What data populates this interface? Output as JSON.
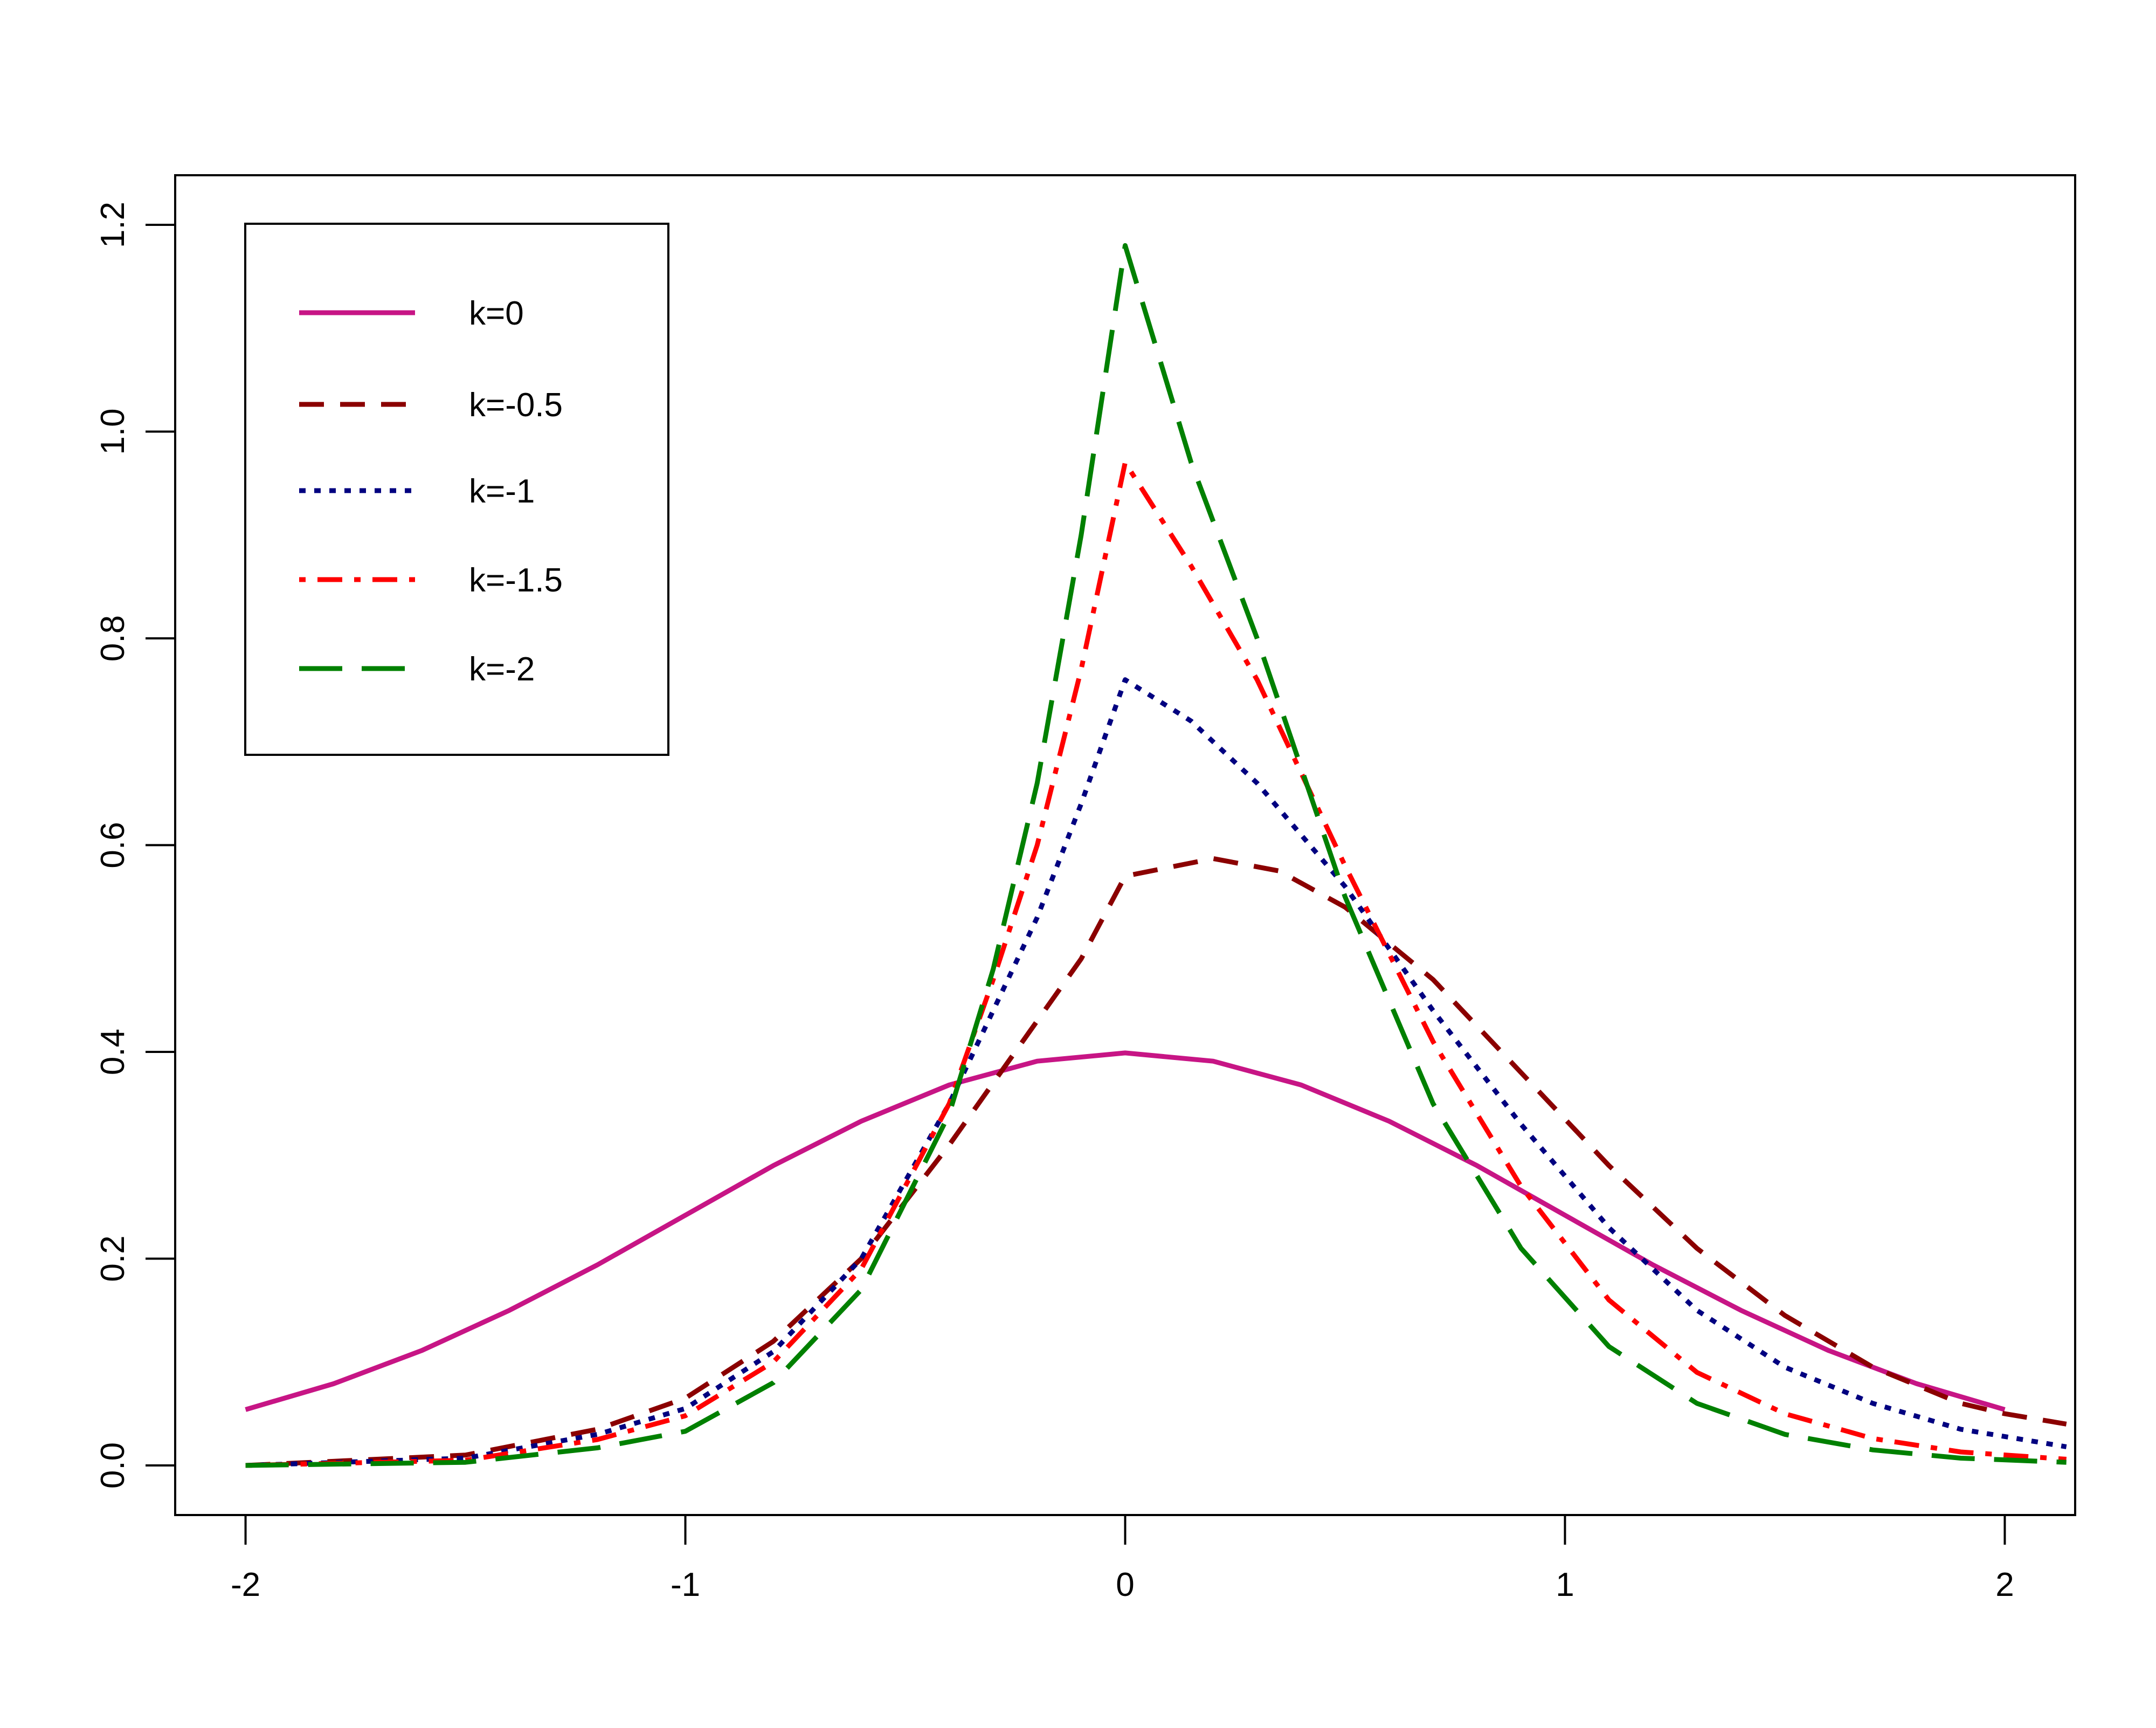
{
  "chart_data": {
    "type": "line",
    "title": "",
    "xlabel": "",
    "ylabel": "",
    "xlim": [
      -2.16,
      2.16
    ],
    "ylim": [
      -0.048,
      1.248
    ],
    "grid": false,
    "legend_position": "top-left",
    "x_ticks": [
      "-2",
      "-1",
      "0",
      "1",
      "2"
    ],
    "y_ticks": [
      "0.0",
      "0.2",
      "0.4",
      "0.6",
      "0.8",
      "1.0",
      "1.2"
    ],
    "series": [
      {
        "name": "k=0",
        "color": "#c71585",
        "style": "solid",
        "x": [
          -2.0,
          -1.8,
          -1.6,
          -1.4,
          -1.2,
          -1.0,
          -0.8,
          -0.6,
          -0.4,
          -0.2,
          0.0,
          0.2,
          0.4,
          0.6,
          0.8,
          1.0,
          1.2,
          1.4,
          1.6,
          1.8,
          2.0
        ],
        "y": [
          0.054,
          0.079,
          0.111,
          0.15,
          0.194,
          0.242,
          0.29,
          0.333,
          0.368,
          0.391,
          0.399,
          0.391,
          0.368,
          0.333,
          0.29,
          0.242,
          0.194,
          0.15,
          0.111,
          0.079,
          0.054
        ]
      },
      {
        "name": "k=-0.5",
        "color": "#8b0000",
        "style": "dashed",
        "x": [
          -2.0,
          -1.5,
          -1.2,
          -1.0,
          -0.8,
          -0.6,
          -0.4,
          -0.3,
          -0.2,
          -0.1,
          0.0,
          0.2,
          0.35,
          0.5,
          0.7,
          0.9,
          1.1,
          1.3,
          1.5,
          1.7,
          1.9,
          2.0,
          2.14
        ],
        "y": [
          0.0,
          0.01,
          0.035,
          0.065,
          0.12,
          0.2,
          0.31,
          0.37,
          0.43,
          0.49,
          0.57,
          0.587,
          0.575,
          0.54,
          0.47,
          0.38,
          0.29,
          0.21,
          0.145,
          0.095,
          0.06,
          0.05,
          0.04
        ]
      },
      {
        "name": "k=-1",
        "color": "#000080",
        "style": "dotted",
        "x": [
          -2.0,
          -1.5,
          -1.2,
          -1.0,
          -0.8,
          -0.6,
          -0.4,
          -0.3,
          -0.2,
          -0.1,
          0.0,
          0.15,
          0.3,
          0.5,
          0.7,
          0.9,
          1.1,
          1.3,
          1.5,
          1.7,
          1.9,
          2.14
        ],
        "y": [
          0.0,
          0.007,
          0.03,
          0.055,
          0.11,
          0.2,
          0.35,
          0.44,
          0.53,
          0.64,
          0.76,
          0.72,
          0.66,
          0.56,
          0.44,
          0.33,
          0.23,
          0.15,
          0.095,
          0.06,
          0.035,
          0.018
        ]
      },
      {
        "name": "k=-1.5",
        "color": "#ff0000",
        "style": "dashdot",
        "x": [
          -2.0,
          -1.5,
          -1.2,
          -1.0,
          -0.8,
          -0.6,
          -0.4,
          -0.3,
          -0.2,
          -0.1,
          0.0,
          0.15,
          0.3,
          0.5,
          0.7,
          0.9,
          1.1,
          1.3,
          1.5,
          1.7,
          1.9,
          2.14
        ],
        "y": [
          0.0,
          0.005,
          0.025,
          0.048,
          0.1,
          0.19,
          0.35,
          0.47,
          0.6,
          0.77,
          0.97,
          0.87,
          0.76,
          0.58,
          0.41,
          0.27,
          0.16,
          0.09,
          0.05,
          0.026,
          0.013,
          0.006
        ]
      },
      {
        "name": "k=-2",
        "color": "#008000",
        "style": "longdash",
        "x": [
          -2.0,
          -1.5,
          -1.2,
          -1.0,
          -0.8,
          -0.6,
          -0.4,
          -0.3,
          -0.2,
          -0.1,
          0.0,
          0.15,
          0.3,
          0.5,
          0.7,
          0.9,
          1.1,
          1.3,
          1.5,
          1.7,
          1.9,
          2.14
        ],
        "y": [
          0.0,
          0.003,
          0.017,
          0.033,
          0.08,
          0.17,
          0.34,
          0.48,
          0.66,
          0.9,
          1.18,
          0.97,
          0.8,
          0.55,
          0.35,
          0.21,
          0.115,
          0.06,
          0.03,
          0.015,
          0.007,
          0.003
        ]
      }
    ]
  }
}
